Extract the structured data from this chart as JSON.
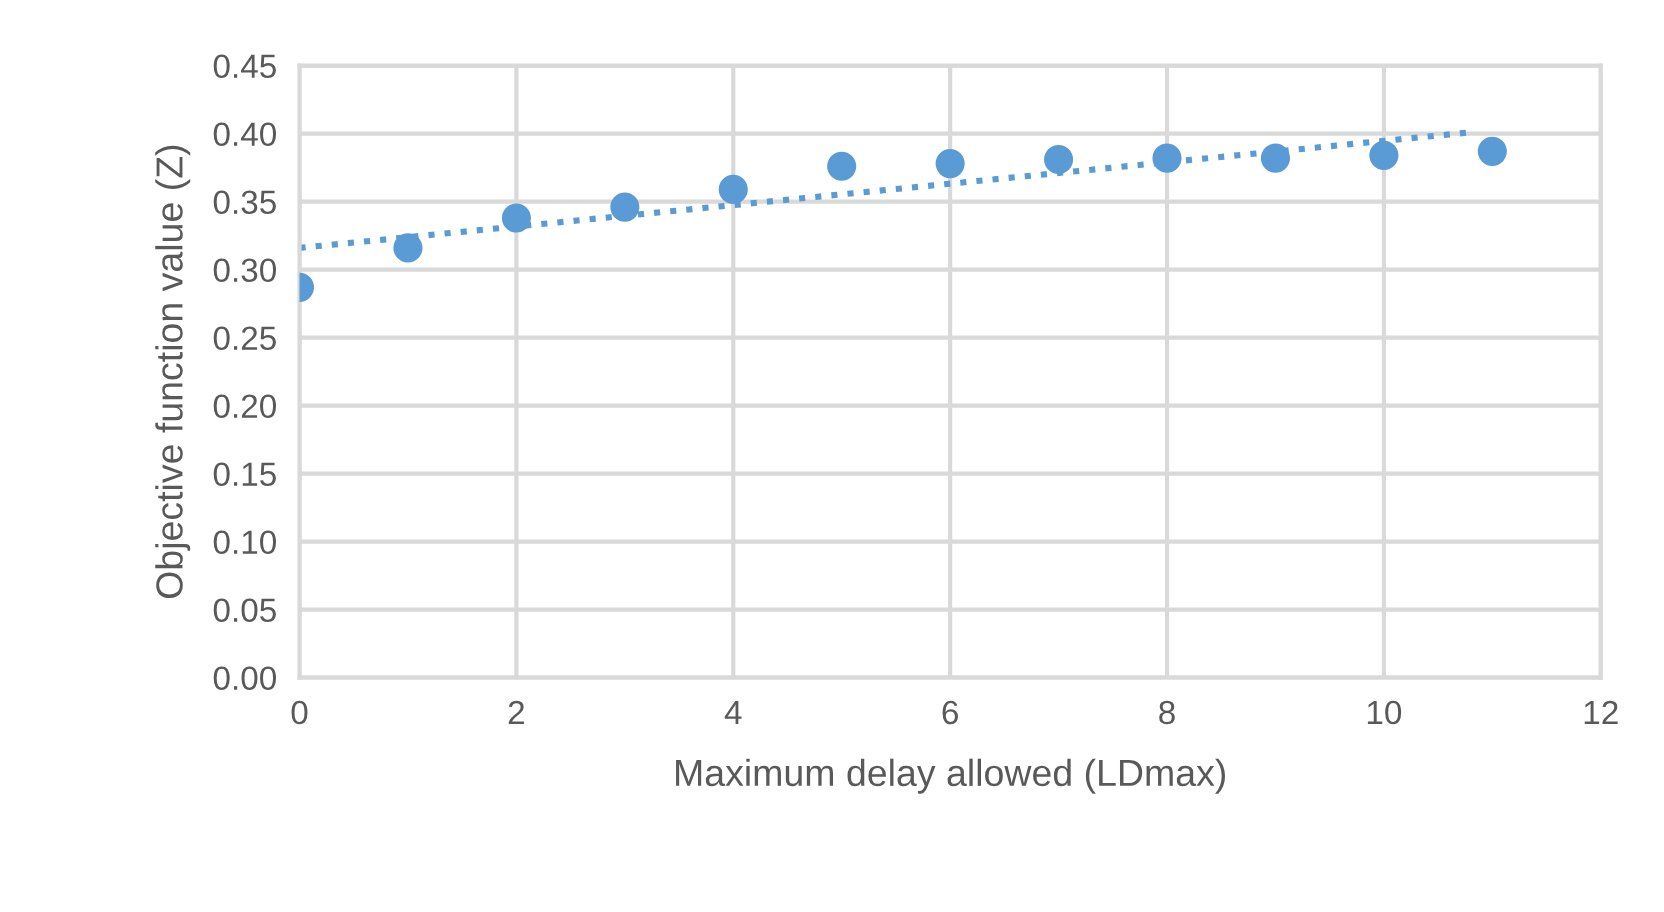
{
  "chart_data": {
    "type": "scatter",
    "xlabel": "Maximum delay allowed (LDmax)",
    "ylabel": "Objective function value (Z)",
    "xlim": [
      0,
      12
    ],
    "xticks": [
      0,
      2,
      4,
      6,
      8,
      10,
      12
    ],
    "ylim": [
      0,
      0.45
    ],
    "yticks": [
      {
        "value": 0,
        "label": "0.00"
      },
      {
        "value": 0.05,
        "label": "0.05"
      },
      {
        "value": 0.1,
        "label": "0.10"
      },
      {
        "value": 0.15,
        "label": "0.15"
      },
      {
        "value": 0.2,
        "label": "0.20"
      },
      {
        "value": 0.25,
        "label": "0.25"
      },
      {
        "value": 0.3,
        "label": "0.30"
      },
      {
        "value": 0.35,
        "label": "0.35"
      },
      {
        "value": 0.4,
        "label": "0.40"
      },
      {
        "value": 0.45,
        "label": "0.45"
      }
    ],
    "grid": true,
    "legend": false,
    "series": [
      {
        "color": "#5b9bd5",
        "marker": "circle",
        "x": [
          0,
          1,
          2,
          3,
          4,
          5,
          6,
          7,
          8,
          9,
          10,
          11
        ],
        "values": [
          0.287,
          0.316,
          0.338,
          0.346,
          0.359,
          0.376,
          0.378,
          0.381,
          0.382,
          0.382,
          0.384,
          0.387
        ]
      },
      {
        "type": "line",
        "color": "#5b9bd5",
        "line_style": "dotted",
        "marker": "none",
        "x": [
          0,
          10.8
        ],
        "values": [
          0.316,
          0.401
        ]
      }
    ]
  }
}
